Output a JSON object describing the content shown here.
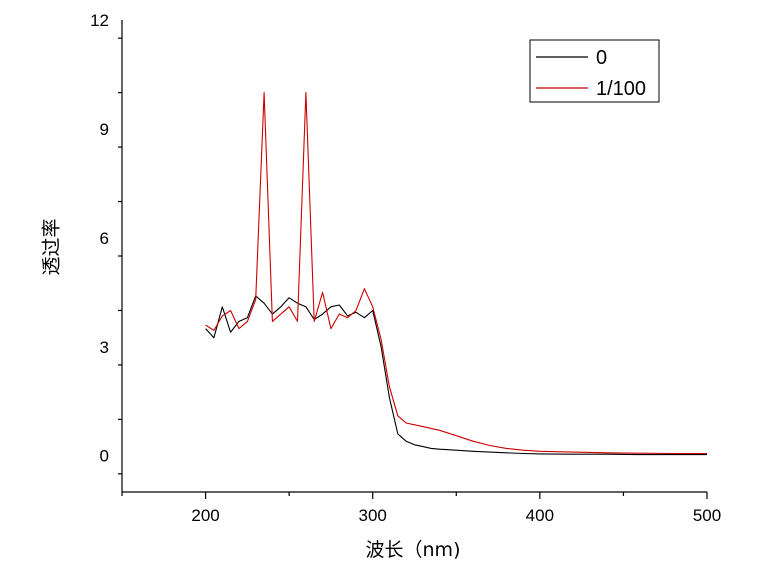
{
  "chart_data": {
    "type": "line",
    "title": "",
    "xlabel": "波长（nm)",
    "ylabel": "透过率",
    "xlim": [
      150,
      500
    ],
    "ylim": [
      -1,
      12
    ],
    "x_ticks": [
      200,
      300,
      400,
      500
    ],
    "y_ticks": [
      0,
      3,
      6,
      9,
      12
    ],
    "grid": false,
    "legend_position": "top-right",
    "series": [
      {
        "name": "0",
        "color": "#000000",
        "x": [
          200,
          205,
          210,
          215,
          220,
          225,
          230,
          235,
          240,
          245,
          250,
          255,
          260,
          265,
          270,
          275,
          280,
          285,
          290,
          295,
          300,
          305,
          310,
          315,
          320,
          325,
          330,
          335,
          340,
          350,
          360,
          370,
          380,
          390,
          400,
          420,
          440,
          460,
          480,
          500
        ],
        "values": [
          3.5,
          3.25,
          4.1,
          3.4,
          3.7,
          3.8,
          4.4,
          4.2,
          3.9,
          4.1,
          4.35,
          4.2,
          4.1,
          3.75,
          3.9,
          4.1,
          4.15,
          3.85,
          3.95,
          3.8,
          4.0,
          3.0,
          1.6,
          0.6,
          0.4,
          0.3,
          0.25,
          0.2,
          0.18,
          0.15,
          0.12,
          0.1,
          0.08,
          0.06,
          0.05,
          0.04,
          0.04,
          0.03,
          0.03,
          0.03
        ]
      },
      {
        "name": "1/100",
        "color": "#cc0000",
        "x": [
          200,
          205,
          210,
          215,
          220,
          225,
          230,
          235,
          240,
          245,
          250,
          255,
          260,
          265,
          270,
          275,
          280,
          285,
          290,
          295,
          300,
          305,
          310,
          315,
          320,
          325,
          330,
          340,
          350,
          360,
          370,
          380,
          390,
          400,
          420,
          440,
          460,
          480,
          500
        ],
        "values": [
          3.6,
          3.45,
          3.85,
          4.0,
          3.5,
          3.7,
          4.3,
          10.0,
          3.7,
          3.9,
          4.1,
          3.7,
          10.0,
          3.7,
          4.5,
          3.5,
          3.9,
          3.8,
          4.0,
          4.6,
          4.1,
          3.2,
          1.9,
          1.1,
          0.9,
          0.85,
          0.8,
          0.7,
          0.55,
          0.4,
          0.28,
          0.2,
          0.15,
          0.12,
          0.1,
          0.08,
          0.07,
          0.06,
          0.06
        ]
      }
    ]
  }
}
